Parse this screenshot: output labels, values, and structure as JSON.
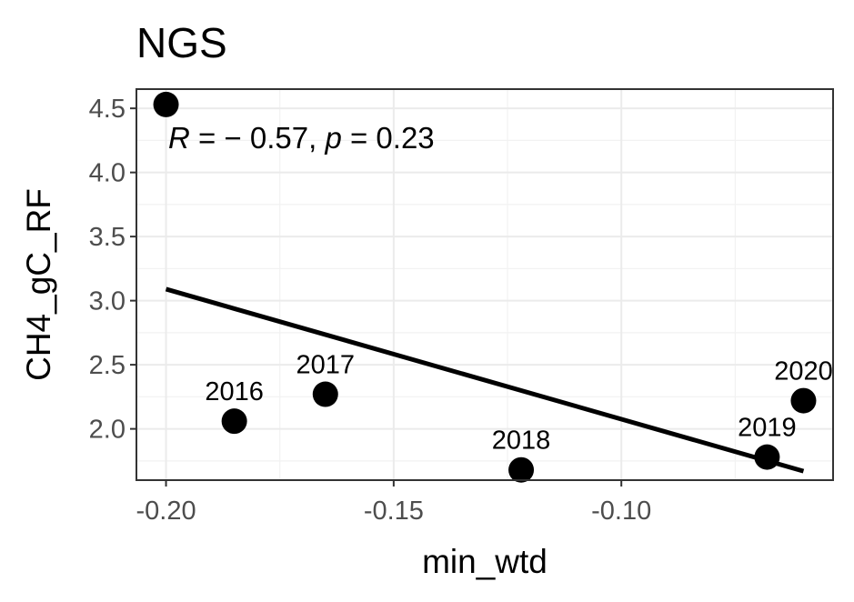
{
  "chart_data": {
    "type": "scatter",
    "title": "NGS",
    "xlabel": "min_wtd",
    "ylabel": "CH4_gC_RF",
    "xlim": [
      -0.2065,
      -0.0535
    ],
    "ylim": [
      1.6,
      4.65
    ],
    "x_ticks": [
      -0.2,
      -0.15,
      -0.1
    ],
    "x_tick_labels": [
      "-0.20",
      "-0.15",
      "-0.10"
    ],
    "y_ticks": [
      2.0,
      2.5,
      3.0,
      3.5,
      4.0,
      4.5
    ],
    "y_tick_labels": [
      "2.0",
      "2.5",
      "3.0",
      "3.5",
      "4.0",
      "4.5"
    ],
    "grid": true,
    "theme": "bw",
    "points": [
      {
        "x": -0.2,
        "y": 4.53,
        "label": ""
      },
      {
        "x": -0.185,
        "y": 2.06,
        "label": "2016"
      },
      {
        "x": -0.165,
        "y": 2.27,
        "label": "2017"
      },
      {
        "x": -0.122,
        "y": 1.68,
        "label": "2018"
      },
      {
        "x": -0.068,
        "y": 1.78,
        "label": "2019"
      },
      {
        "x": -0.06,
        "y": 2.22,
        "label": "2020"
      }
    ],
    "fit_line": {
      "type": "linear",
      "x": [
        -0.2,
        -0.06
      ],
      "y": [
        3.09,
        1.67
      ]
    },
    "annotation": {
      "R": "R",
      "eq": " = − 0.57, ",
      "p": "p",
      "p_rest": " = 0.23"
    }
  }
}
